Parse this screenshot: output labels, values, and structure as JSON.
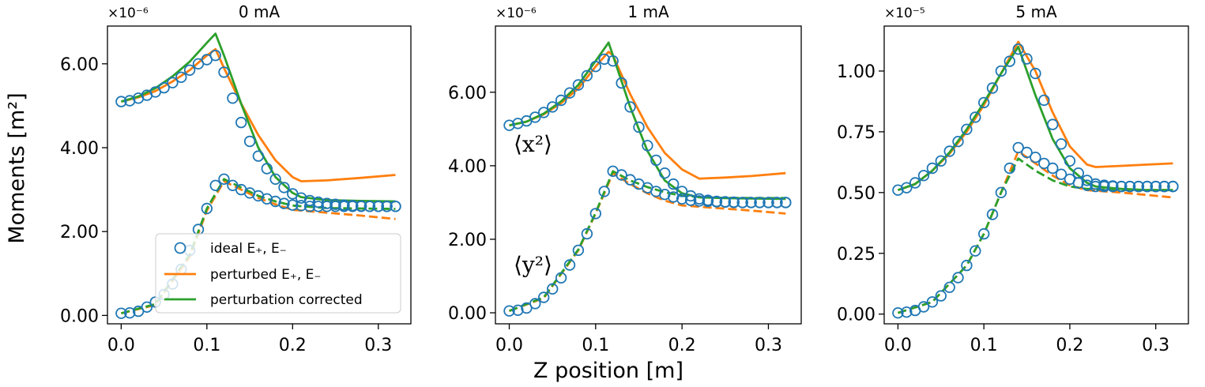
{
  "figure": {
    "ylabel": "Moments [m²]",
    "xlabel": "Z position [m]",
    "annotations": {
      "x2": "⟨x²⟩",
      "y2": "⟨y²⟩"
    }
  },
  "legend": {
    "items": [
      {
        "label": "ideal E₊, E₋",
        "style": "marker"
      },
      {
        "label": "perturbed E₊, E₋",
        "style": "line-orange"
      },
      {
        "label": "perturbation corrected",
        "style": "line-green"
      }
    ]
  },
  "colors": {
    "ideal": "#1f77b4",
    "perturbed": "#ff7f0e",
    "corrected": "#2ca02c"
  },
  "chart_data": [
    {
      "type": "line",
      "title": "0 mA",
      "offset_text": "×10⁻⁶",
      "ylim": [
        -0.2,
        6.9
      ],
      "xlim": [
        -0.016,
        0.338
      ],
      "yticks": [
        0,
        2,
        4,
        6
      ],
      "ytick_labels": [
        "0.00",
        "2.00",
        "4.00",
        "6.00"
      ],
      "xticks": [
        0,
        0.1,
        0.2,
        0.3
      ],
      "xtick_labels": [
        "0.0",
        "0.1",
        "0.2",
        "0.3"
      ],
      "markers_x2": {
        "x": [
          0,
          0.01,
          0.02,
          0.03,
          0.04,
          0.05,
          0.06,
          0.07,
          0.08,
          0.09,
          0.1,
          0.11,
          0.12,
          0.13,
          0.14,
          0.15,
          0.16,
          0.17,
          0.18,
          0.19,
          0.2,
          0.21,
          0.22,
          0.23,
          0.24,
          0.25,
          0.26,
          0.27,
          0.28,
          0.29,
          0.3,
          0.31,
          0.32
        ],
        "y": [
          5.1,
          5.12,
          5.18,
          5.25,
          5.33,
          5.43,
          5.55,
          5.68,
          5.85,
          6.0,
          6.1,
          6.2,
          5.8,
          5.18,
          4.6,
          4.15,
          3.8,
          3.5,
          3.25,
          3.05,
          2.9,
          2.8,
          2.74,
          2.7,
          2.67,
          2.65,
          2.63,
          2.62,
          2.61,
          2.6,
          2.6,
          2.6,
          2.6
        ]
      },
      "markers_y2": {
        "x": [
          0,
          0.01,
          0.02,
          0.03,
          0.04,
          0.05,
          0.06,
          0.07,
          0.08,
          0.09,
          0.1,
          0.11,
          0.12,
          0.13,
          0.14,
          0.15,
          0.16,
          0.17,
          0.18,
          0.19,
          0.2,
          0.21,
          0.22,
          0.23,
          0.24,
          0.25,
          0.26,
          0.27,
          0.28,
          0.29,
          0.3,
          0.31,
          0.32
        ],
        "y": [
          0.05,
          0.06,
          0.1,
          0.2,
          0.32,
          0.5,
          0.75,
          1.1,
          1.55,
          2.05,
          2.55,
          3.1,
          3.25,
          3.1,
          3.0,
          2.92,
          2.85,
          2.78,
          2.72,
          2.67,
          2.63,
          2.62,
          2.6,
          2.6,
          2.6,
          2.6,
          2.6,
          2.6,
          2.6,
          2.6,
          2.6,
          2.6,
          2.6
        ]
      },
      "perturbed_x2": {
        "x": [
          0,
          0.02,
          0.04,
          0.06,
          0.08,
          0.1,
          0.11,
          0.12,
          0.14,
          0.16,
          0.18,
          0.2,
          0.21,
          0.24,
          0.28,
          0.32
        ],
        "y": [
          5.1,
          5.2,
          5.35,
          5.58,
          5.85,
          6.2,
          6.35,
          5.9,
          5.05,
          4.3,
          3.7,
          3.3,
          3.2,
          3.22,
          3.28,
          3.35
        ]
      },
      "corrected_x2": {
        "x": [
          0,
          0.02,
          0.04,
          0.06,
          0.08,
          0.1,
          0.11,
          0.12,
          0.14,
          0.16,
          0.18,
          0.2,
          0.21,
          0.24,
          0.28,
          0.32
        ],
        "y": [
          5.1,
          5.22,
          5.42,
          5.7,
          6.05,
          6.5,
          6.72,
          6.2,
          5.05,
          4.0,
          3.3,
          2.92,
          2.82,
          2.75,
          2.73,
          2.72
        ]
      },
      "perturbed_y2": {
        "x": [
          0,
          0.04,
          0.08,
          0.1,
          0.12,
          0.14,
          0.16,
          0.18,
          0.2,
          0.24,
          0.28,
          0.32
        ],
        "y": [
          0.05,
          0.25,
          1.4,
          2.5,
          3.2,
          3.0,
          2.8,
          2.65,
          2.52,
          2.45,
          2.38,
          2.3
        ]
      },
      "corrected_y2": {
        "x": [
          0,
          0.04,
          0.08,
          0.1,
          0.12,
          0.14,
          0.16,
          0.18,
          0.2,
          0.24,
          0.28,
          0.32
        ],
        "y": [
          0.05,
          0.27,
          1.45,
          2.55,
          3.25,
          3.05,
          2.85,
          2.72,
          2.62,
          2.56,
          2.55,
          2.54
        ]
      }
    },
    {
      "type": "line",
      "title": "1 mA",
      "offset_text": "×10⁻⁶",
      "ylim": [
        -0.3,
        7.8
      ],
      "xlim": [
        -0.016,
        0.338
      ],
      "yticks": [
        0,
        2,
        4,
        6
      ],
      "ytick_labels": [
        "0.00",
        "2.00",
        "4.00",
        "6.00"
      ],
      "xticks": [
        0,
        0.1,
        0.2,
        0.3
      ],
      "xtick_labels": [
        "0.0",
        "0.1",
        "0.2",
        "0.3"
      ],
      "markers_x2": {
        "x": [
          0,
          0.01,
          0.02,
          0.03,
          0.04,
          0.05,
          0.06,
          0.07,
          0.08,
          0.09,
          0.1,
          0.11,
          0.12,
          0.13,
          0.14,
          0.15,
          0.16,
          0.17,
          0.18,
          0.19,
          0.2,
          0.21,
          0.22,
          0.23,
          0.24,
          0.25,
          0.26,
          0.27,
          0.28,
          0.29,
          0.3,
          0.31,
          0.32
        ],
        "y": [
          5.1,
          5.15,
          5.22,
          5.32,
          5.45,
          5.6,
          5.78,
          5.98,
          6.2,
          6.45,
          6.7,
          6.9,
          6.85,
          6.25,
          5.6,
          5.05,
          4.55,
          4.15,
          3.8,
          3.5,
          3.3,
          3.18,
          3.1,
          3.06,
          3.03,
          3.02,
          3.01,
          3.0,
          3.0,
          3.0,
          3.0,
          3.0,
          3.0
        ]
      },
      "markers_y2": {
        "x": [
          0,
          0.01,
          0.02,
          0.03,
          0.04,
          0.05,
          0.06,
          0.07,
          0.08,
          0.09,
          0.1,
          0.11,
          0.12,
          0.13,
          0.14,
          0.15,
          0.16,
          0.17,
          0.18,
          0.19,
          0.2,
          0.21,
          0.22,
          0.23,
          0.24,
          0.25,
          0.26,
          0.27,
          0.28,
          0.29,
          0.3,
          0.31,
          0.32
        ],
        "y": [
          0.05,
          0.07,
          0.13,
          0.25,
          0.42,
          0.65,
          0.95,
          1.3,
          1.7,
          2.15,
          2.7,
          3.3,
          3.85,
          3.75,
          3.62,
          3.5,
          3.4,
          3.3,
          3.22,
          3.15,
          3.1,
          3.06,
          3.04,
          3.03,
          3.02,
          3.01,
          3.0,
          3.0,
          3.0,
          3.0,
          3.0,
          3.0,
          3.0
        ]
      },
      "perturbed_x2": {
        "x": [
          0,
          0.02,
          0.04,
          0.06,
          0.08,
          0.1,
          0.115,
          0.12,
          0.14,
          0.16,
          0.18,
          0.2,
          0.22,
          0.25,
          0.28,
          0.32
        ],
        "y": [
          5.1,
          5.2,
          5.4,
          5.7,
          6.1,
          6.7,
          7.1,
          7.0,
          5.95,
          5.05,
          4.35,
          3.9,
          3.65,
          3.68,
          3.72,
          3.8
        ]
      },
      "corrected_x2": {
        "x": [
          0,
          0.02,
          0.04,
          0.06,
          0.08,
          0.1,
          0.115,
          0.12,
          0.14,
          0.16,
          0.18,
          0.2,
          0.22,
          0.25,
          0.28,
          0.32
        ],
        "y": [
          5.1,
          5.2,
          5.42,
          5.75,
          6.2,
          6.85,
          7.35,
          7.0,
          5.6,
          4.4,
          3.6,
          3.25,
          3.14,
          3.12,
          3.11,
          3.1
        ]
      },
      "perturbed_y2": {
        "x": [
          0,
          0.04,
          0.08,
          0.1,
          0.12,
          0.14,
          0.16,
          0.18,
          0.2,
          0.24,
          0.28,
          0.32
        ],
        "y": [
          0.05,
          0.4,
          1.7,
          2.7,
          3.8,
          3.5,
          3.25,
          3.05,
          2.92,
          2.85,
          2.78,
          2.7
        ]
      },
      "corrected_y2": {
        "x": [
          0,
          0.04,
          0.08,
          0.1,
          0.12,
          0.14,
          0.16,
          0.18,
          0.2,
          0.24,
          0.28,
          0.32
        ],
        "y": [
          0.05,
          0.42,
          1.72,
          2.72,
          3.85,
          3.6,
          3.42,
          3.28,
          3.18,
          3.13,
          3.12,
          3.12
        ]
      }
    },
    {
      "type": "line",
      "title": "5 mA",
      "offset_text": "×10⁻⁵",
      "ylim": [
        -0.04,
        1.185
      ],
      "xlim": [
        -0.016,
        0.338
      ],
      "yticks": [
        0,
        0.25,
        0.5,
        0.75,
        1.0
      ],
      "ytick_labels": [
        "0.00",
        "0.25",
        "0.50",
        "0.75",
        "1.00"
      ],
      "xticks": [
        0,
        0.1,
        0.2,
        0.3
      ],
      "xtick_labels": [
        "0.0",
        "0.1",
        "0.2",
        "0.3"
      ],
      "markers_x2": {
        "x": [
          0,
          0.01,
          0.02,
          0.03,
          0.04,
          0.05,
          0.06,
          0.07,
          0.08,
          0.09,
          0.1,
          0.11,
          0.12,
          0.13,
          0.14,
          0.15,
          0.16,
          0.17,
          0.18,
          0.19,
          0.2,
          0.21,
          0.22,
          0.23,
          0.24,
          0.25,
          0.26,
          0.27,
          0.28,
          0.29,
          0.3,
          0.31,
          0.32
        ],
        "y": [
          0.51,
          0.52,
          0.54,
          0.57,
          0.6,
          0.63,
          0.67,
          0.71,
          0.76,
          0.81,
          0.87,
          0.93,
          1.0,
          1.04,
          1.09,
          1.05,
          0.99,
          0.88,
          0.78,
          0.7,
          0.63,
          0.58,
          0.55,
          0.535,
          0.53,
          0.527,
          0.525,
          0.525,
          0.525,
          0.525,
          0.525,
          0.525,
          0.525
        ]
      },
      "markers_y2": {
        "x": [
          0,
          0.01,
          0.02,
          0.03,
          0.04,
          0.05,
          0.06,
          0.07,
          0.08,
          0.09,
          0.1,
          0.11,
          0.12,
          0.13,
          0.14,
          0.15,
          0.16,
          0.17,
          0.18,
          0.19,
          0.2,
          0.21,
          0.22,
          0.23,
          0.24,
          0.25,
          0.26,
          0.27,
          0.28,
          0.29,
          0.3,
          0.31,
          0.32
        ],
        "y": [
          0.005,
          0.008,
          0.015,
          0.03,
          0.05,
          0.075,
          0.11,
          0.15,
          0.2,
          0.26,
          0.33,
          0.41,
          0.5,
          0.6,
          0.685,
          0.665,
          0.645,
          0.62,
          0.6,
          0.575,
          0.555,
          0.54,
          0.53,
          0.525,
          0.525,
          0.525,
          0.525,
          0.525,
          0.525,
          0.525,
          0.525,
          0.525,
          0.525
        ]
      },
      "perturbed_x2": {
        "x": [
          0,
          0.02,
          0.04,
          0.06,
          0.08,
          0.1,
          0.12,
          0.14,
          0.16,
          0.18,
          0.2,
          0.22,
          0.23,
          0.26,
          0.29,
          0.32
        ],
        "y": [
          0.51,
          0.535,
          0.59,
          0.66,
          0.75,
          0.86,
          0.99,
          1.12,
          1.0,
          0.83,
          0.69,
          0.615,
          0.605,
          0.61,
          0.615,
          0.62
        ]
      },
      "corrected_x2": {
        "x": [
          0,
          0.02,
          0.04,
          0.06,
          0.08,
          0.1,
          0.12,
          0.14,
          0.16,
          0.18,
          0.2,
          0.22,
          0.23,
          0.26,
          0.29,
          0.32
        ],
        "y": [
          0.51,
          0.535,
          0.59,
          0.665,
          0.76,
          0.87,
          0.99,
          1.1,
          0.9,
          0.72,
          0.6,
          0.54,
          0.525,
          0.515,
          0.51,
          0.51
        ]
      },
      "perturbed_y2": {
        "x": [
          0,
          0.04,
          0.08,
          0.1,
          0.12,
          0.14,
          0.16,
          0.18,
          0.2,
          0.22,
          0.26,
          0.32
        ],
        "y": [
          0.005,
          0.05,
          0.2,
          0.33,
          0.5,
          0.67,
          0.62,
          0.57,
          0.53,
          0.51,
          0.5,
          0.48
        ]
      },
      "corrected_y2": {
        "x": [
          0,
          0.04,
          0.08,
          0.1,
          0.12,
          0.14,
          0.16,
          0.18,
          0.2,
          0.22,
          0.26,
          0.32
        ],
        "y": [
          0.005,
          0.05,
          0.2,
          0.33,
          0.5,
          0.64,
          0.59,
          0.55,
          0.525,
          0.515,
          0.51,
          0.51
        ]
      }
    }
  ]
}
